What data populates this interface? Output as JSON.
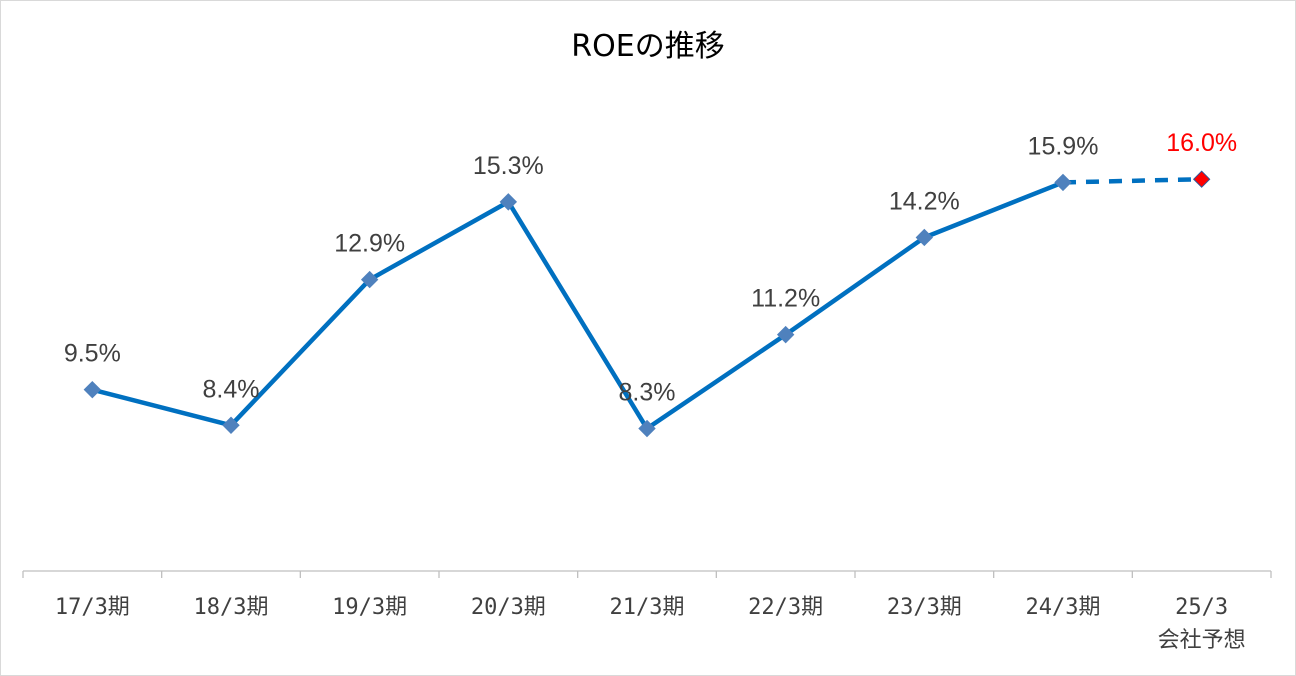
{
  "chart_data": {
    "type": "line",
    "title": "ROEの推移",
    "categories": [
      [
        "17/3期"
      ],
      [
        "18/3期"
      ],
      [
        "19/3期"
      ],
      [
        "20/3期"
      ],
      [
        "21/3期"
      ],
      [
        "22/3期"
      ],
      [
        "23/3期"
      ],
      [
        "24/3期"
      ],
      [
        "25/3",
        "会社予想"
      ]
    ],
    "series": [
      {
        "values": [
          9.5,
          8.4,
          12.9,
          15.3,
          8.3,
          11.2,
          14.2,
          15.9,
          16.0
        ],
        "labels": [
          "9.5%",
          "8.4%",
          "12.9%",
          "15.3%",
          "8.3%",
          "11.2%",
          "14.2%",
          "15.9%",
          "16.0%"
        ],
        "forecast_index": 8
      }
    ],
    "ylim": [
      3.9,
      18.6
    ],
    "grid": false,
    "legend": "none",
    "colors": {
      "line": "#0070c0",
      "marker": "#4f81bd",
      "forecast_marker": "#ff0000",
      "forecast_label": "#ff0000",
      "label": "#404040",
      "axis": "#bfbfbf"
    }
  }
}
